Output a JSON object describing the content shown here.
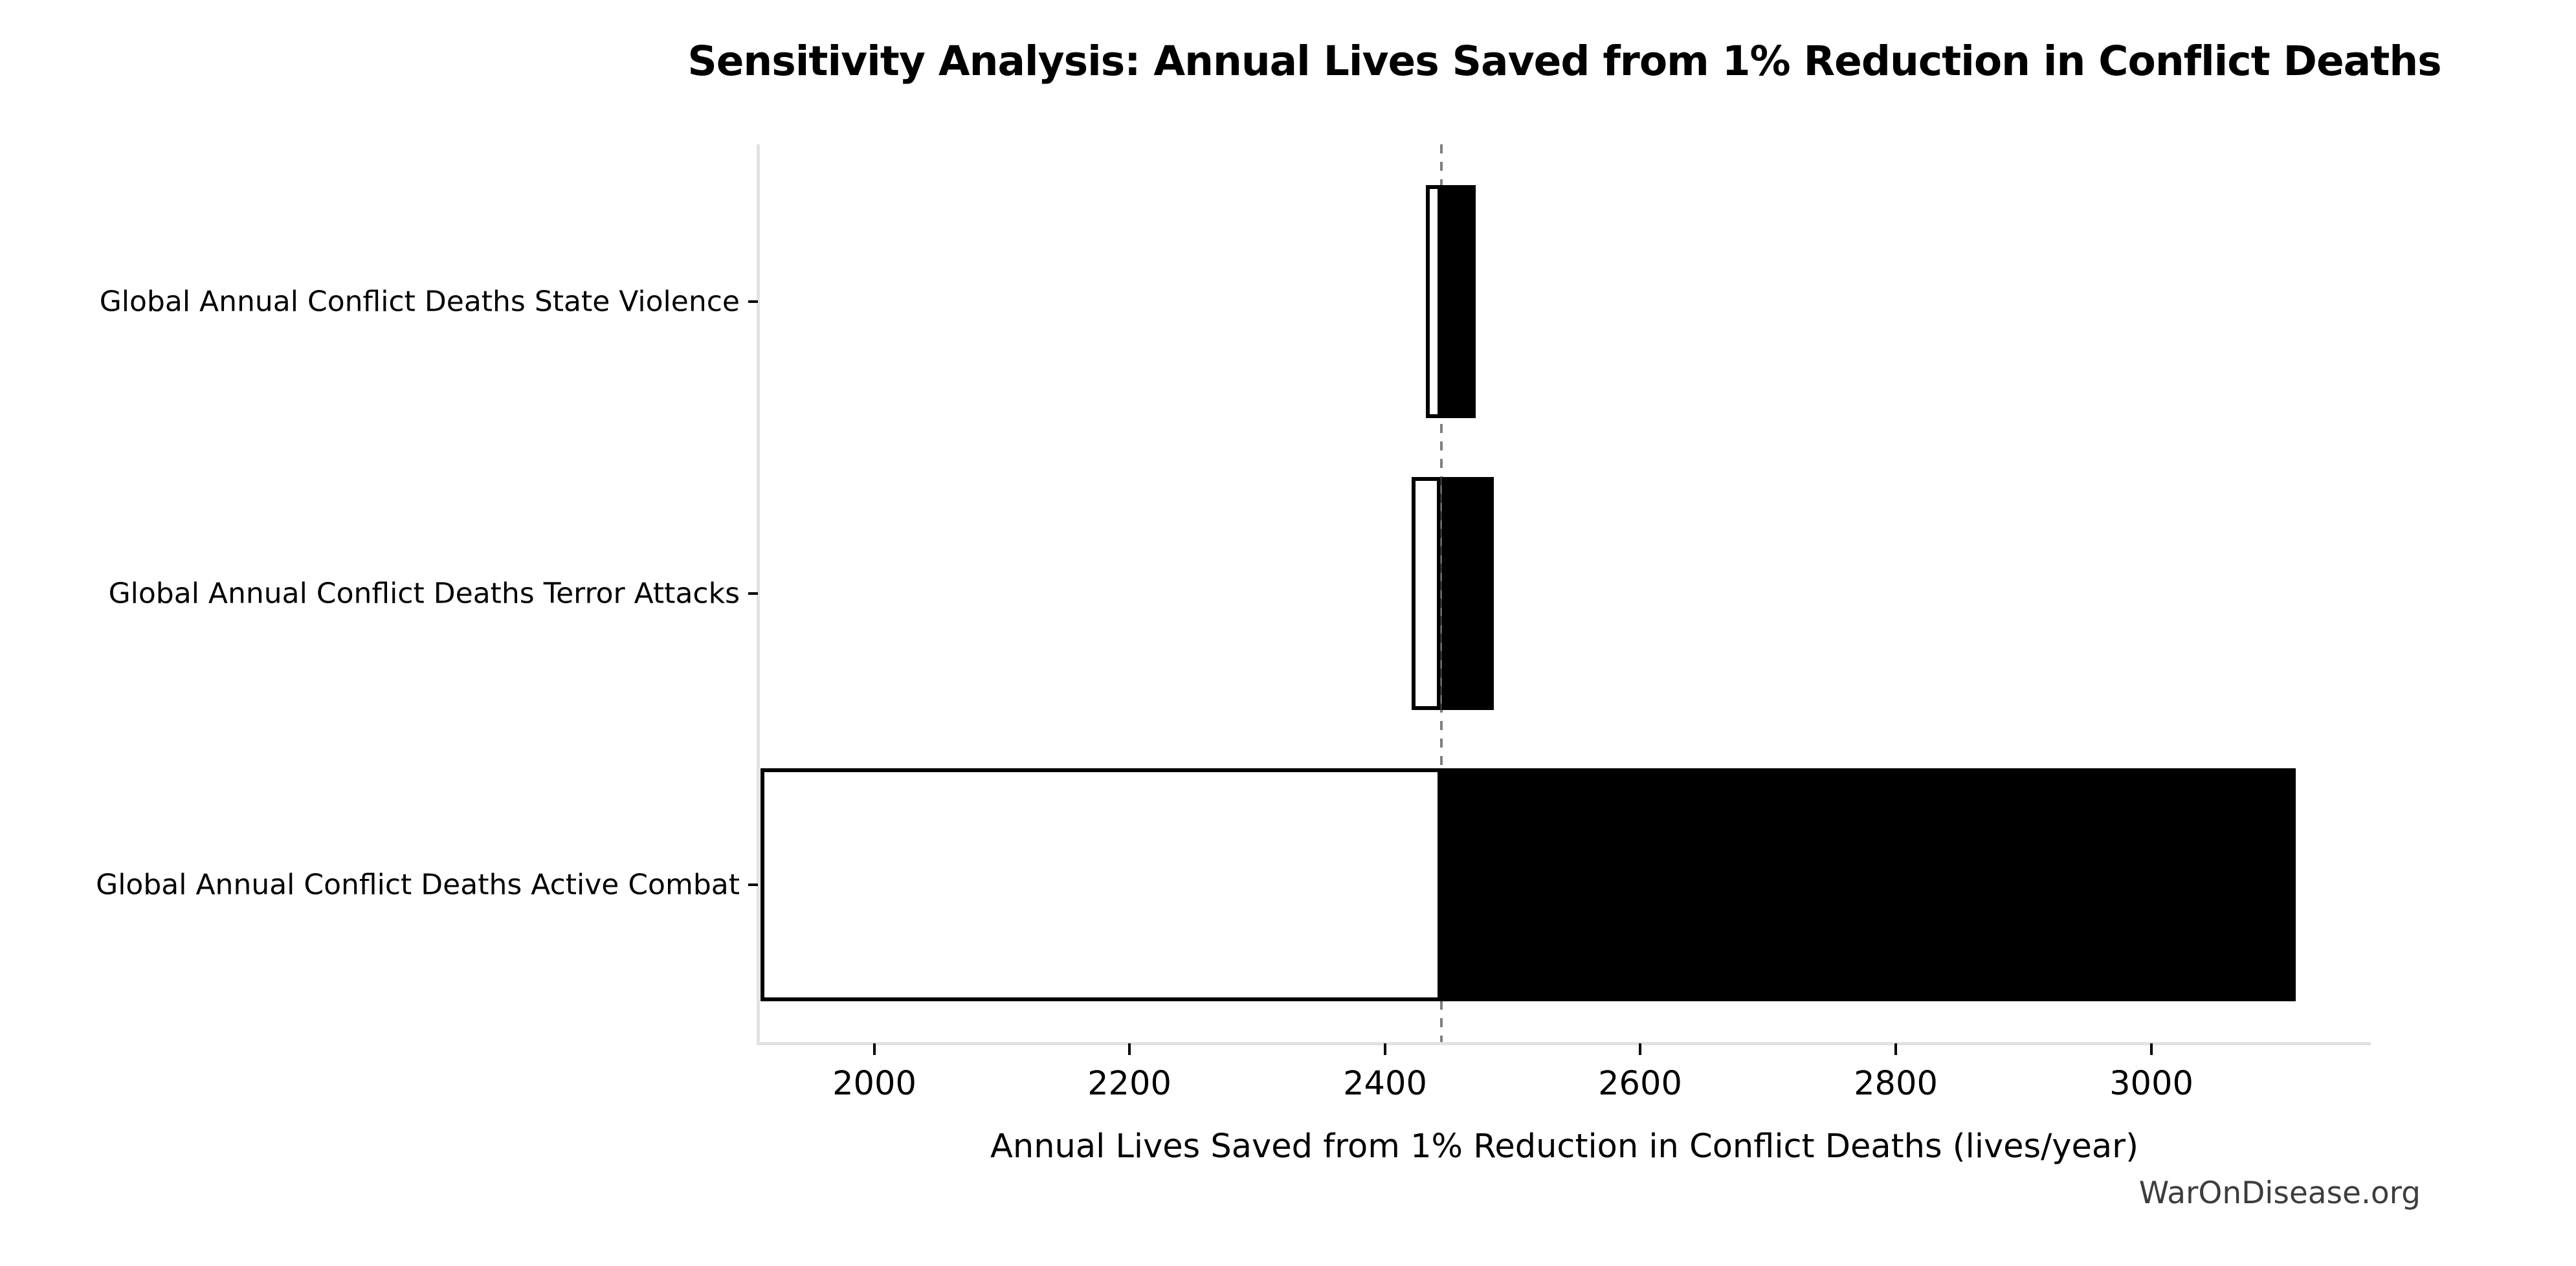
{
  "figure": {
    "watermark": "WarOnDisease.org"
  },
  "chart_data": {
    "type": "bar",
    "subtype": "tornado-sensitivity-horizontal",
    "title": "Sensitivity Analysis: Annual Lives Saved from 1% Reduction in Conflict Deaths",
    "xlabel": "Annual Lives Saved from 1% Reduction in Conflict Deaths (lives/year)",
    "ylabel": "",
    "baseline": 2444,
    "xlim": [
      1909,
      3172
    ],
    "xticks": [
      2000,
      2200,
      2400,
      2600,
      2800,
      3000
    ],
    "grid": false,
    "legend": "none",
    "bar_height_fraction": 0.8,
    "categories": [
      "Global Annual Conflict Deaths State Violence",
      "Global Annual Conflict Deaths Terror Attacks",
      "Global Annual Conflict Deaths Active Combat"
    ],
    "series": [
      {
        "name": "low",
        "values": [
          2432,
          2421,
          1911
        ]
      },
      {
        "name": "high",
        "values": [
          2471,
          2485,
          3113
        ]
      }
    ],
    "colors": {
      "low_fill": "#ffffff",
      "high_fill": "#000000",
      "bar_edge": "#000000",
      "baseline_line": "#7f7f7f",
      "spine": "#e2e2e2",
      "text": "#000000",
      "watermark": "#3d3d3d"
    }
  }
}
